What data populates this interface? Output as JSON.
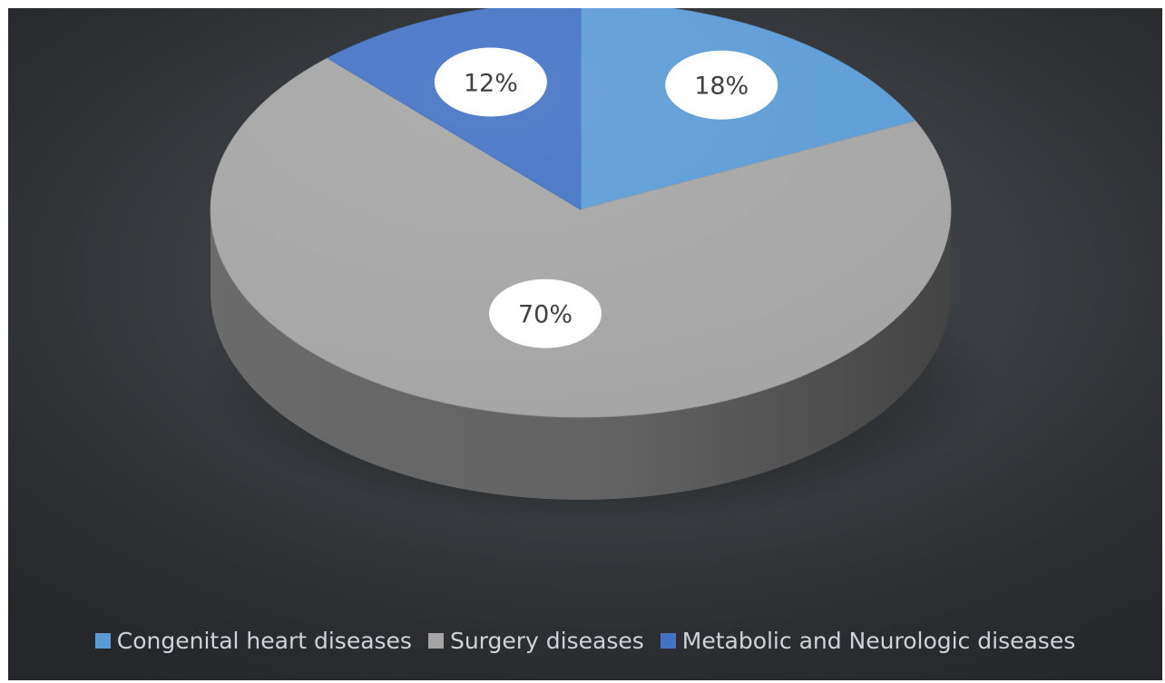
{
  "chart_data": {
    "type": "pie",
    "style": "3d",
    "title": "",
    "slices": [
      {
        "name": "Congenital heart diseases",
        "value": 18,
        "label": "18%",
        "color": "#5b9bd5"
      },
      {
        "name": "Surgery diseases",
        "value": 70,
        "label": "70%",
        "color": "#a5a5a5"
      },
      {
        "name": "Metabolic and Neurologic diseases",
        "value": 12,
        "label": "12%",
        "color": "#4472c4"
      }
    ],
    "legend_position": "bottom",
    "background": "#3a3d41"
  }
}
